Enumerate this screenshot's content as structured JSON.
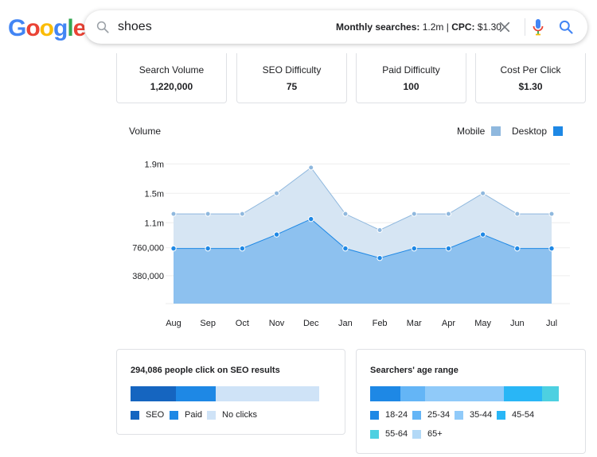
{
  "logo": {
    "letters": [
      "G",
      "o",
      "o",
      "g",
      "l",
      "e"
    ],
    "colors": [
      "#4285f4",
      "#ea4335",
      "#fbbc05",
      "#4285f4",
      "#34a853",
      "#ea4335"
    ]
  },
  "search": {
    "query": "shoes",
    "monthly_label": "Monthly searches:",
    "monthly_value": "1.2m",
    "separator": "|",
    "cpc_label": "CPC:",
    "cpc_value": "$1.30"
  },
  "stats": [
    {
      "label": "Search Volume",
      "value": "1,220,000"
    },
    {
      "label": "SEO Difficulty",
      "value": "75"
    },
    {
      "label": "Paid Difficulty",
      "value": "100"
    },
    {
      "label": "Cost Per Click",
      "value": "$1.30"
    }
  ],
  "chart_data": {
    "type": "area",
    "title": "Volume",
    "categories": [
      "Aug",
      "Sep",
      "Oct",
      "Nov",
      "Dec",
      "Jan",
      "Feb",
      "Mar",
      "Apr",
      "May",
      "Jun",
      "Jul"
    ],
    "yticks": [
      380000,
      760000,
      1100000,
      1500000,
      1900000
    ],
    "ytick_labels": [
      "380,000",
      "760,000",
      "1.1m",
      "1.5m",
      "1.9m"
    ],
    "ylim": [
      0,
      2000000
    ],
    "series": [
      {
        "name": "Mobile",
        "color": "#8fb8de",
        "values": [
          1220000,
          1220000,
          1220000,
          1500000,
          1850000,
          1220000,
          1000000,
          1220000,
          1220000,
          1500000,
          1220000,
          1220000
        ]
      },
      {
        "name": "Desktop",
        "color": "#1e88e5",
        "values": [
          750000,
          750000,
          750000,
          940000,
          1150000,
          750000,
          620000,
          750000,
          750000,
          940000,
          750000,
          750000
        ]
      }
    ],
    "legend_position": "top-right"
  },
  "seo_clicks": {
    "title": "294,086 people click on SEO results",
    "segments": [
      {
        "label": "SEO",
        "share": 0.24,
        "color": "#1565c0"
      },
      {
        "label": "Paid",
        "share": 0.21,
        "color": "#1e88e5"
      },
      {
        "label": "No clicks",
        "share": 0.55,
        "color": "#cfe3f7"
      }
    ]
  },
  "age_range": {
    "title": "Searchers' age range",
    "segments": [
      {
        "label": "18-24",
        "share": 0.16,
        "color": "#1e88e5"
      },
      {
        "label": "25-34",
        "share": 0.13,
        "color": "#64b5f6"
      },
      {
        "label": "35-44",
        "share": 0.42,
        "color": "#90caf9"
      },
      {
        "label": "45-54",
        "share": 0.2,
        "color": "#29b6f6"
      },
      {
        "label": "55-64",
        "share": 0.09,
        "color": "#4dd0e1"
      },
      {
        "label": "65+",
        "share": 0.0,
        "color": "#b3d9f7"
      }
    ]
  }
}
